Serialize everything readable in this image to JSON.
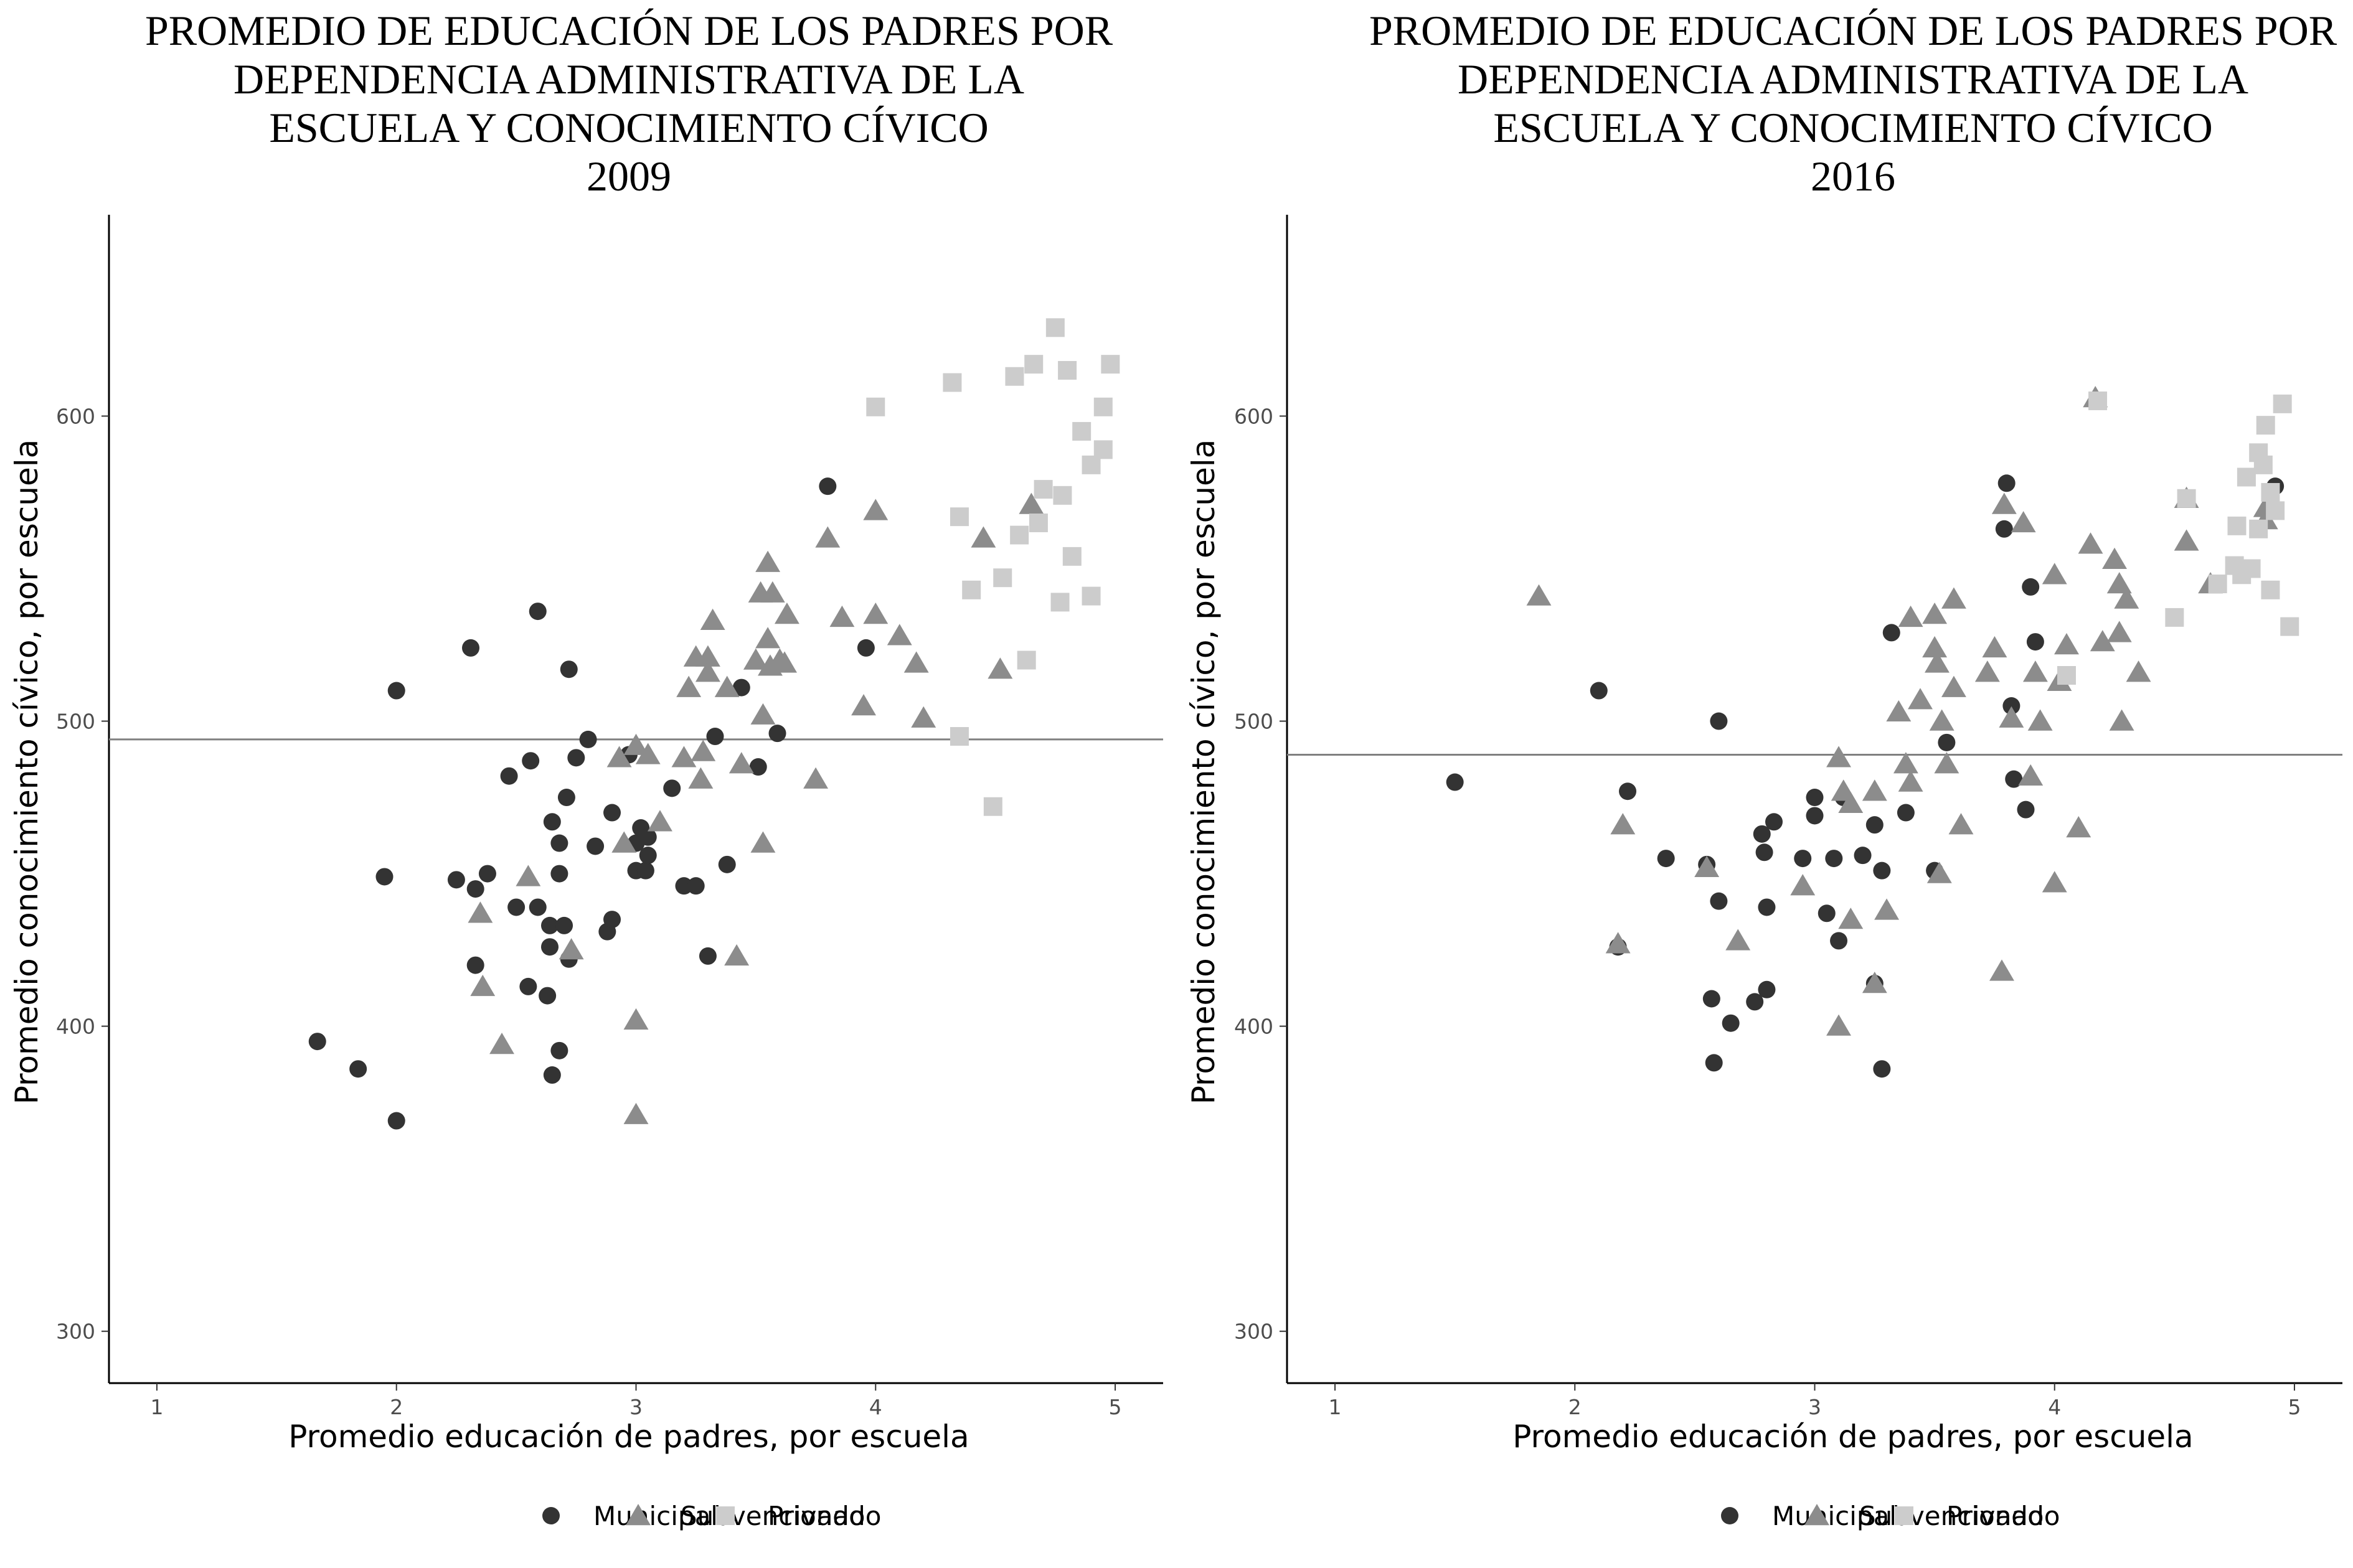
{
  "colors": {
    "Municipal": "#333333",
    "Subvencionado": "#8c8c8c",
    "Privado": "#cccccc",
    "refline": "#808080",
    "axis": "#000000"
  },
  "legend": {
    "items": [
      "Municipal",
      "Subvencionado",
      "Privado"
    ],
    "shapes": [
      "circle",
      "triangle",
      "square"
    ]
  },
  "chart_data": [
    {
      "type": "scatter",
      "title_lines": [
        "PROMEDIO DE EDUCACIÓN DE LOS PADRES POR",
        "DEPENDENCIA ADMINISTRATIVA DE LA",
        "ESCUELA Y CONOCIMIENTO CÍVICO",
        "2009"
      ],
      "xlabel": "Promedio educación de padres, por escuela",
      "ylabel": "Promedio conocimiento cívico, por escuela",
      "xticks": [
        1,
        2,
        3,
        4,
        5
      ],
      "yticks": [
        300,
        400,
        500,
        600
      ],
      "xlim": [
        0.8,
        5.2
      ],
      "ylim": [
        283,
        666
      ],
      "hline": 494,
      "legend_position": "bottom",
      "series": [
        {
          "name": "Municipal",
          "shape": "circle",
          "points": [
            [
              1.67,
              395
            ],
            [
              1.84,
              386
            ],
            [
              1.95,
              449
            ],
            [
              2.0,
              510
            ],
            [
              2.0,
              369
            ],
            [
              2.25,
              448
            ],
            [
              2.33,
              445
            ],
            [
              2.33,
              420
            ],
            [
              2.38,
              450
            ],
            [
              2.47,
              482
            ],
            [
              2.5,
              439
            ],
            [
              2.55,
              413
            ],
            [
              2.56,
              487
            ],
            [
              2.59,
              536
            ],
            [
              2.59,
              439
            ],
            [
              2.63,
              410
            ],
            [
              2.64,
              426
            ],
            [
              2.64,
              433
            ],
            [
              2.65,
              467
            ],
            [
              2.65,
              384
            ],
            [
              2.68,
              450
            ],
            [
              2.68,
              460
            ],
            [
              2.68,
              392
            ],
            [
              2.7,
              433
            ],
            [
              2.71,
              475
            ],
            [
              2.72,
              422
            ],
            [
              2.72,
              517
            ],
            [
              2.75,
              488
            ],
            [
              2.8,
              494
            ],
            [
              2.83,
              459
            ],
            [
              2.88,
              431
            ],
            [
              2.9,
              435
            ],
            [
              2.9,
              470
            ],
            [
              2.97,
              489
            ],
            [
              3.0,
              460
            ],
            [
              3.0,
              451
            ],
            [
              3.02,
              465
            ],
            [
              3.04,
              451
            ],
            [
              3.05,
              456
            ],
            [
              3.05,
              462
            ],
            [
              3.15,
              478
            ],
            [
              3.2,
              446
            ],
            [
              3.25,
              446
            ],
            [
              3.3,
              423
            ],
            [
              3.33,
              495
            ],
            [
              3.38,
              453
            ],
            [
              3.44,
              511
            ],
            [
              3.51,
              485
            ],
            [
              3.59,
              496
            ],
            [
              3.8,
              577
            ],
            [
              3.96,
              524
            ],
            [
              2.31,
              524
            ]
          ]
        },
        {
          "name": "Subvencionado",
          "shape": "triangle",
          "points": [
            [
              2.35,
              437
            ],
            [
              2.36,
              413
            ],
            [
              2.44,
              394
            ],
            [
              2.55,
              449
            ],
            [
              2.73,
              425
            ],
            [
              2.93,
              488
            ],
            [
              2.95,
              460
            ],
            [
              3.0,
              402
            ],
            [
              3.0,
              371
            ],
            [
              3.0,
              492
            ],
            [
              3.05,
              489
            ],
            [
              3.1,
              467
            ],
            [
              3.2,
              488
            ],
            [
              3.22,
              511
            ],
            [
              3.25,
              521
            ],
            [
              3.27,
              481
            ],
            [
              3.28,
              490
            ],
            [
              3.3,
              521
            ],
            [
              3.3,
              516
            ],
            [
              3.32,
              533
            ],
            [
              3.38,
              511
            ],
            [
              3.42,
              423
            ],
            [
              3.44,
              486
            ],
            [
              3.5,
              520
            ],
            [
              3.52,
              542
            ],
            [
              3.53,
              460
            ],
            [
              3.53,
              502
            ],
            [
              3.55,
              552
            ],
            [
              3.55,
              527
            ],
            [
              3.56,
              518
            ],
            [
              3.57,
              542
            ],
            [
              3.6,
              520
            ],
            [
              3.62,
              519
            ],
            [
              3.63,
              535
            ],
            [
              3.75,
              481
            ],
            [
              3.8,
              560
            ],
            [
              3.86,
              534
            ],
            [
              3.95,
              505
            ],
            [
              4.0,
              569
            ],
            [
              4.0,
              535
            ],
            [
              4.1,
              528
            ],
            [
              4.17,
              519
            ],
            [
              4.2,
              501
            ],
            [
              4.45,
              560
            ],
            [
              4.52,
              517
            ],
            [
              4.65,
              571
            ]
          ]
        },
        {
          "name": "Privado",
          "shape": "square",
          "points": [
            [
              4.0,
              603
            ],
            [
              4.32,
              611
            ],
            [
              4.35,
              567
            ],
            [
              4.35,
              495
            ],
            [
              4.4,
              543
            ],
            [
              4.49,
              472
            ],
            [
              4.53,
              547
            ],
            [
              4.58,
              613
            ],
            [
              4.6,
              561
            ],
            [
              4.63,
              520
            ],
            [
              4.66,
              617
            ],
            [
              4.68,
              565
            ],
            [
              4.7,
              576
            ],
            [
              4.75,
              629
            ],
            [
              4.77,
              539
            ],
            [
              4.78,
              574
            ],
            [
              4.8,
              615
            ],
            [
              4.82,
              554
            ],
            [
              4.86,
              595
            ],
            [
              4.9,
              541
            ],
            [
              4.9,
              584
            ],
            [
              4.95,
              589
            ],
            [
              4.95,
              603
            ],
            [
              4.98,
              617
            ]
          ]
        }
      ]
    },
    {
      "type": "scatter",
      "title_lines": [
        "PROMEDIO DE EDUCACIÓN DE LOS PADRES POR",
        "DEPENDENCIA ADMINISTRATIVA DE LA",
        "ESCUELA Y CONOCIMIENTO CÍVICO",
        "2016"
      ],
      "xlabel": "Promedio educación de padres, por escuela",
      "ylabel": "Promedio conocimiento cívico, por escuela",
      "xticks": [
        1,
        2,
        3,
        4,
        5
      ],
      "yticks": [
        300,
        400,
        500,
        600
      ],
      "xlim": [
        0.8,
        5.2
      ],
      "ylim": [
        283,
        666
      ],
      "hline": 489,
      "legend_position": "bottom",
      "series": [
        {
          "name": "Municipal",
          "shape": "circle",
          "points": [
            [
              1.5,
              480
            ],
            [
              2.1,
              510
            ],
            [
              2.18,
              426
            ],
            [
              2.22,
              477
            ],
            [
              2.38,
              455
            ],
            [
              2.55,
              453
            ],
            [
              2.57,
              409
            ],
            [
              2.58,
              388
            ],
            [
              2.6,
              441
            ],
            [
              2.65,
              401
            ],
            [
              2.6,
              500
            ],
            [
              2.75,
              408
            ],
            [
              2.78,
              463
            ],
            [
              2.79,
              457
            ],
            [
              2.8,
              412
            ],
            [
              2.8,
              439
            ],
            [
              2.83,
              467
            ],
            [
              2.95,
              455
            ],
            [
              3.0,
              469
            ],
            [
              3.0,
              475
            ],
            [
              3.05,
              437
            ],
            [
              3.08,
              455
            ],
            [
              3.1,
              428
            ],
            [
              3.12,
              475
            ],
            [
              3.2,
              456
            ],
            [
              3.25,
              414
            ],
            [
              3.25,
              466
            ],
            [
              3.28,
              451
            ],
            [
              3.28,
              386
            ],
            [
              3.32,
              529
            ],
            [
              3.38,
              470
            ],
            [
              3.5,
              451
            ],
            [
              3.55,
              493
            ],
            [
              3.8,
              578
            ],
            [
              3.82,
              505
            ],
            [
              3.83,
              481
            ],
            [
              3.88,
              471
            ],
            [
              3.9,
              544
            ],
            [
              3.92,
              526
            ],
            [
              3.79,
              563
            ],
            [
              4.92,
              577
            ]
          ]
        },
        {
          "name": "Subvencionado",
          "shape": "triangle",
          "points": [
            [
              1.85,
              541
            ],
            [
              2.2,
              466
            ],
            [
              2.18,
              427
            ],
            [
              2.55,
              452
            ],
            [
              2.68,
              428
            ],
            [
              2.95,
              446
            ],
            [
              3.1,
              488
            ],
            [
              3.1,
              400
            ],
            [
              3.12,
              477
            ],
            [
              3.15,
              473
            ],
            [
              3.15,
              435
            ],
            [
              3.25,
              477
            ],
            [
              3.25,
              414
            ],
            [
              3.3,
              438
            ],
            [
              3.35,
              503
            ],
            [
              3.38,
              486
            ],
            [
              3.4,
              534
            ],
            [
              3.4,
              480
            ],
            [
              3.44,
              507
            ],
            [
              3.5,
              535
            ],
            [
              3.5,
              524
            ],
            [
              3.51,
              519
            ],
            [
              3.52,
              450
            ],
            [
              3.53,
              500
            ],
            [
              3.55,
              486
            ],
            [
              3.58,
              511
            ],
            [
              3.58,
              540
            ],
            [
              3.61,
              466
            ],
            [
              3.72,
              516
            ],
            [
              3.75,
              524
            ],
            [
              3.78,
              418
            ],
            [
              3.79,
              571
            ],
            [
              3.82,
              501
            ],
            [
              3.87,
              565
            ],
            [
              3.9,
              482
            ],
            [
              3.92,
              516
            ],
            [
              3.94,
              500
            ],
            [
              4.0,
              548
            ],
            [
              4.0,
              447
            ],
            [
              4.02,
              513
            ],
            [
              4.05,
              525
            ],
            [
              4.1,
              465
            ],
            [
              4.15,
              558
            ],
            [
              4.17,
              606
            ],
            [
              4.2,
              526
            ],
            [
              4.25,
              553
            ],
            [
              4.27,
              529
            ],
            [
              4.28,
              500
            ],
            [
              4.3,
              540
            ],
            [
              4.35,
              516
            ],
            [
              4.55,
              559
            ],
            [
              4.65,
              545
            ],
            [
              4.88,
              566
            ],
            [
              4.27,
              545
            ],
            [
              4.55,
              573
            ],
            [
              4.88,
              570
            ]
          ]
        },
        {
          "name": "Privado",
          "shape": "square",
          "points": [
            [
              4.05,
              515
            ],
            [
              4.18,
              605
            ],
            [
              4.5,
              534
            ],
            [
              4.55,
              573
            ],
            [
              4.68,
              545
            ],
            [
              4.75,
              551
            ],
            [
              4.76,
              564
            ],
            [
              4.78,
              548
            ],
            [
              4.8,
              580
            ],
            [
              4.82,
              550
            ],
            [
              4.85,
              588
            ],
            [
              4.87,
              584
            ],
            [
              4.88,
              597
            ],
            [
              4.9,
              543
            ],
            [
              4.9,
              575
            ],
            [
              4.92,
              569
            ],
            [
              4.95,
              604
            ],
            [
              4.98,
              531
            ],
            [
              4.85,
              563
            ]
          ]
        }
      ]
    }
  ]
}
